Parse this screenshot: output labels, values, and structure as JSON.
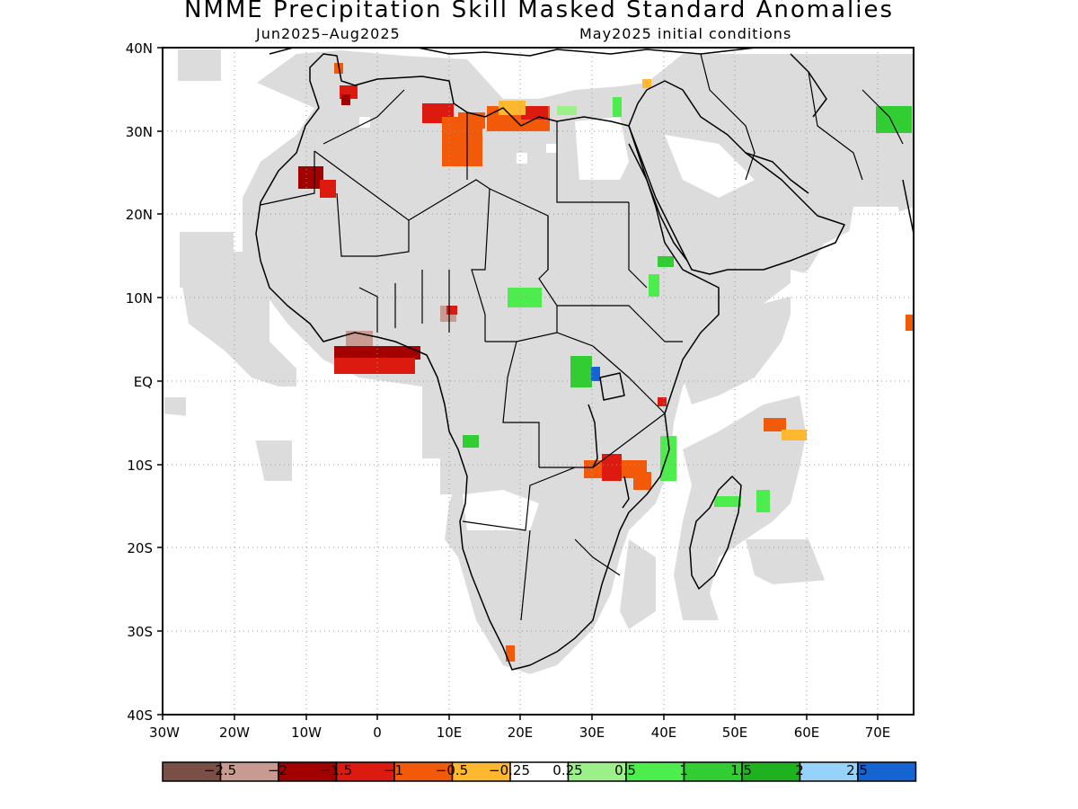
{
  "title": "NMME Precipitation Skill Masked Standard Anomalies",
  "subtitle_left": "Jun2025–Aug2025",
  "subtitle_right": "May2025 initial conditions",
  "map": {
    "lon_range": [
      -30,
      75
    ],
    "lat_range": [
      -40,
      40
    ],
    "lon_ticks": [
      "30W",
      "20W",
      "10W",
      "0",
      "10E",
      "20E",
      "30E",
      "40E",
      "50E",
      "60E",
      "70E"
    ],
    "lat_ticks": [
      "40N",
      "30N",
      "20N",
      "10N",
      "EQ",
      "10S",
      "20S",
      "30S",
      "40S"
    ],
    "grid": "dotted",
    "mask_color": "#dcdcdc",
    "land_outline": "#000000"
  },
  "legend": {
    "colors": [
      "#7a4f45",
      "#c99a90",
      "#a30000",
      "#dc1a10",
      "#f25a0a",
      "#fdb830",
      "#ffffff",
      "#9cf08a",
      "#4ded4d",
      "#32cd32",
      "#1fb21f",
      "#96d2fa",
      "#1464d2"
    ],
    "labels": [
      "−2.5",
      "−2",
      "−1.5",
      "−1",
      "−0.5",
      "−0.25",
      "0.25",
      "0.5",
      "1",
      "1.5",
      "2",
      "2.5"
    ]
  },
  "anomaly_patches": [
    {
      "region": "Morocco coast",
      "level": -1
    },
    {
      "region": "Western Sahara",
      "level": -1.5
    },
    {
      "region": "Algeria-Libya",
      "level": -0.5
    },
    {
      "region": "Libya coast",
      "level": -0.25
    },
    {
      "region": "Gulf of Guinea",
      "level": -1.5
    },
    {
      "region": "Nigeria",
      "level": -2
    },
    {
      "region": "Chad-Sudan",
      "level": 0.5
    },
    {
      "region": "Uganda",
      "level": 1.5
    },
    {
      "region": "Lake Victoria",
      "level": 2.5
    },
    {
      "region": "Kenya coast",
      "level": -1
    },
    {
      "region": "Zambia-Malawi",
      "level": -0.5
    },
    {
      "region": "Tanzania coast",
      "level": 1
    },
    {
      "region": "Madagascar",
      "level": 0.5
    },
    {
      "region": "Mascarene",
      "level": -0.5
    },
    {
      "region": "Cape",
      "level": -0.5
    },
    {
      "region": "Angola",
      "level": 1
    },
    {
      "region": "Pakistan",
      "level": 1.5
    },
    {
      "region": "Ethiopia",
      "level": 1
    },
    {
      "region": "Egypt",
      "level": 0.5
    }
  ]
}
